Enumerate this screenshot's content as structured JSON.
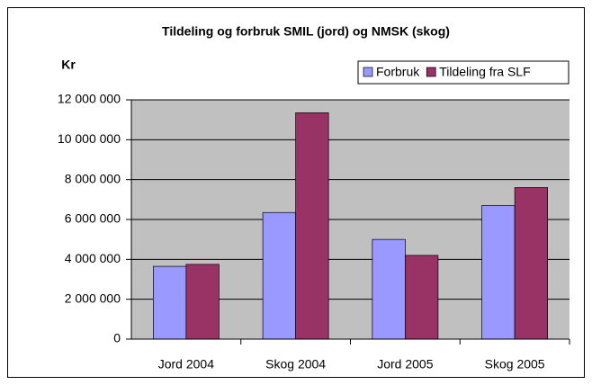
{
  "chart_data": {
    "type": "bar",
    "title": "Tildeling og forbruk SMIL (jord) og NMSK (skog)",
    "ylabel": "Kr",
    "categories": [
      "Jord 2004",
      "Skog 2004",
      "Jord 2005",
      "Skog 2005"
    ],
    "series": [
      {
        "name": "Forbruk",
        "color": "#9999ff",
        "values": [
          3650000,
          6350000,
          5000000,
          6700000
        ]
      },
      {
        "name": "Tildeling fra SLF",
        "color": "#993366",
        "values": [
          3750000,
          11350000,
          4200000,
          7600000
        ]
      }
    ],
    "ylim": [
      0,
      12000000
    ],
    "yticks": [
      0,
      {
        "value": 2000000,
        "label": "2 000 000"
      },
      {
        "value": 4000000,
        "label": "4 000 000"
      },
      {
        "value": 6000000,
        "label": "6 000 000"
      },
      {
        "value": 8000000,
        "label": "8 000 000"
      },
      {
        "value": 10000000,
        "label": "10 000 000"
      },
      {
        "value": 12000000,
        "label": "12 000 000"
      }
    ],
    "grid": true
  }
}
